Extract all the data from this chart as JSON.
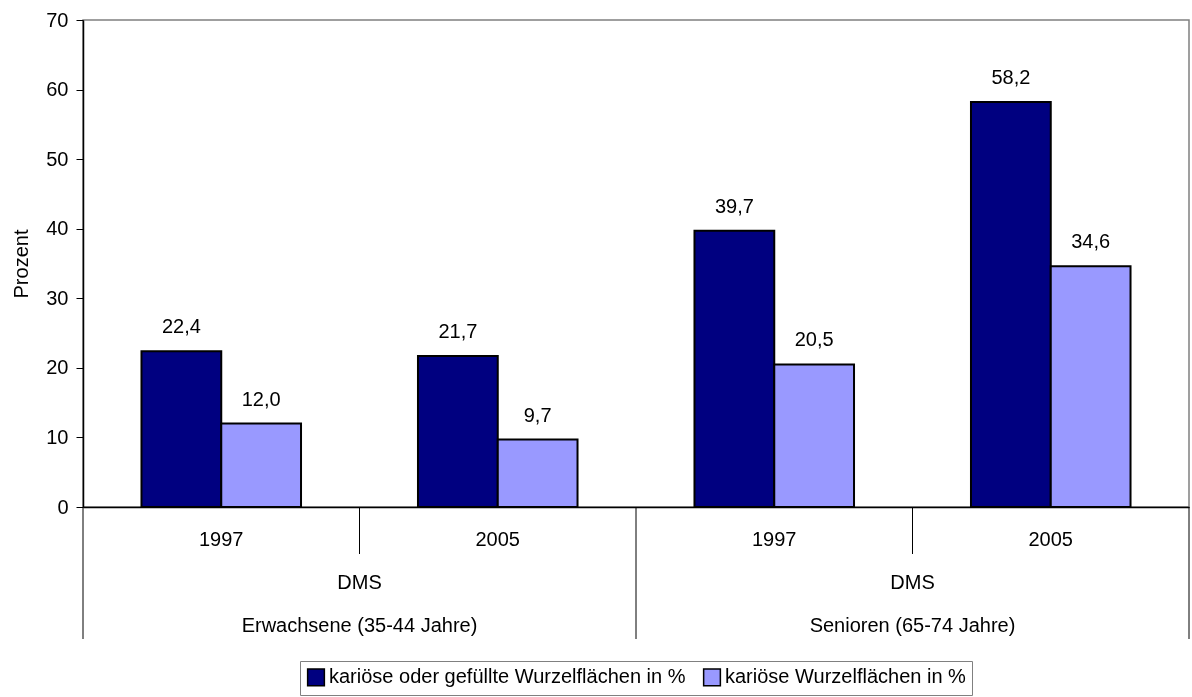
{
  "chart_data": {
    "type": "bar",
    "ylabel": "Prozent",
    "categories": [
      "1997",
      "2005",
      "1997",
      "2005"
    ],
    "annotations": [
      "DMS",
      "Erwachsene (35-44 Jahre)",
      "DMS",
      "Senioren (65-74 Jahre)"
    ],
    "series": [
      {
        "name": "kariöse oder gefüllte Wurzelflächen in %",
        "color": "#000080",
        "values": [
          22.4,
          21.7,
          39.7,
          58.2
        ],
        "value_labels": [
          "22,4",
          "21,7",
          "39,7",
          "58,2"
        ]
      },
      {
        "name": "kariöse Wurzelflächen in %",
        "color": "#9999ff",
        "values": [
          12.0,
          9.7,
          20.5,
          34.6
        ],
        "value_labels": [
          "12,0",
          "9,7",
          "20,5",
          "34,6"
        ]
      }
    ],
    "ylim": [
      0,
      70
    ],
    "yticks": [
      0,
      10,
      20,
      30,
      40,
      50,
      60,
      70
    ],
    "legend": "bottom"
  }
}
